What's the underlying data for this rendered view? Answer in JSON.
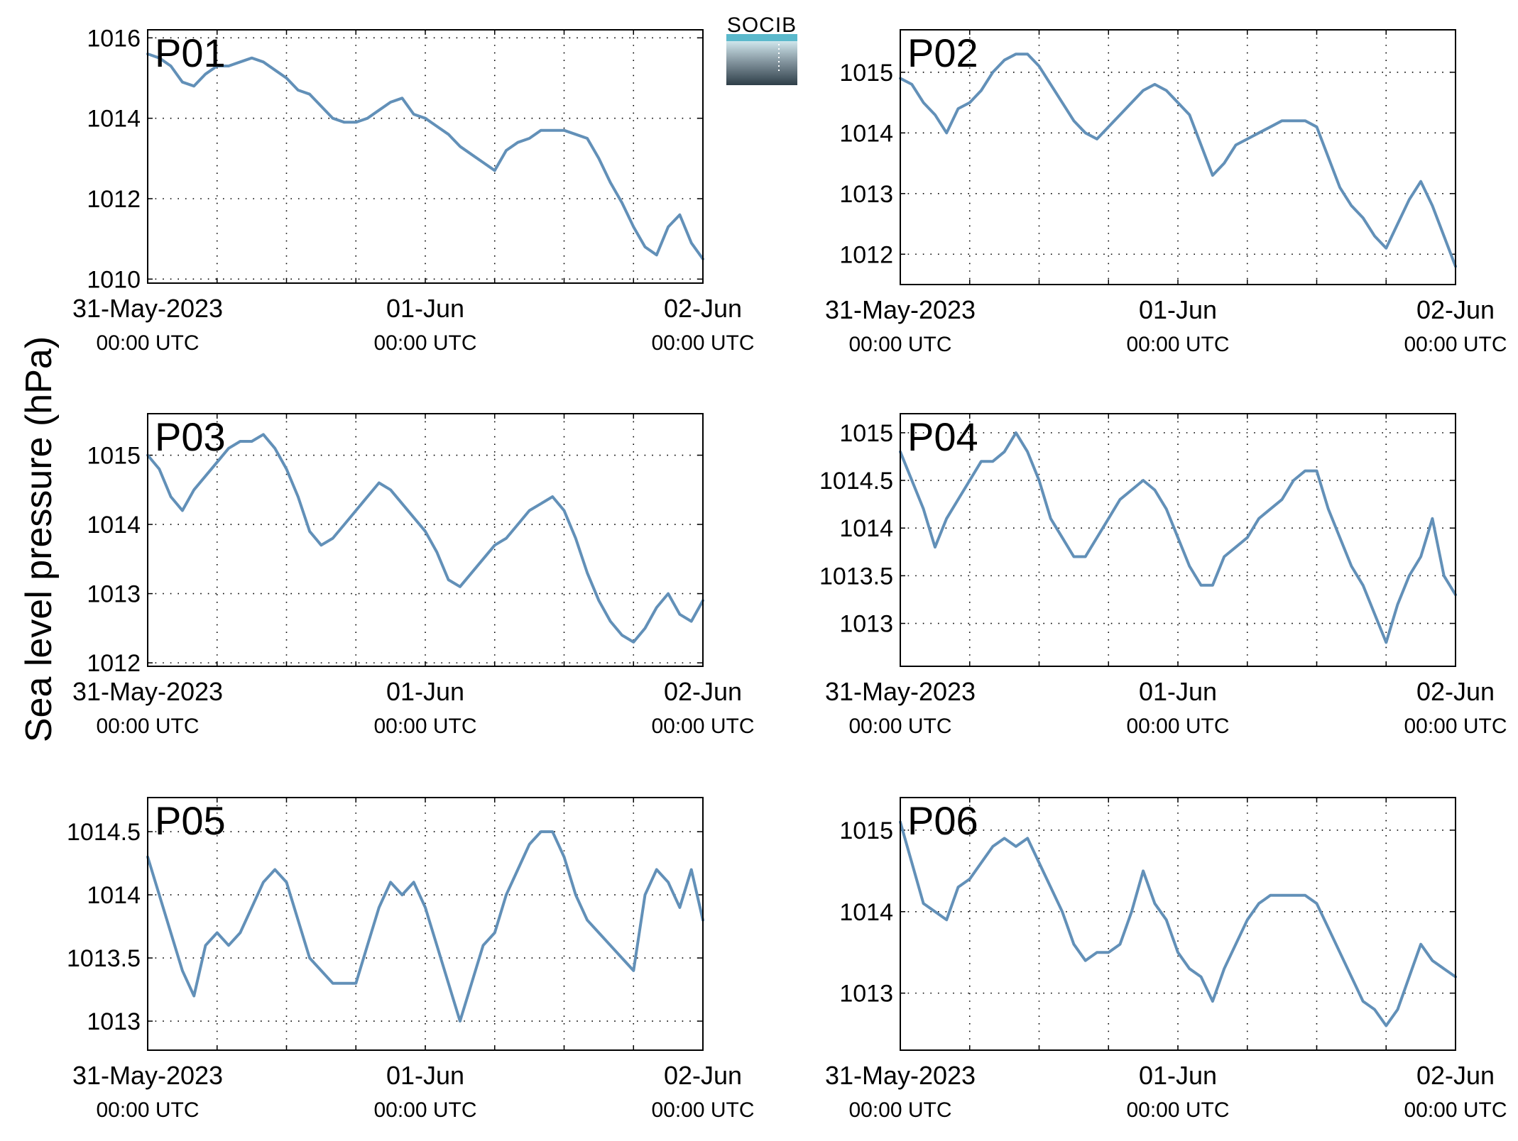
{
  "figure": {
    "ylabel": "Sea level pressure (hPa)",
    "logo_text": "SOCIB"
  },
  "colors": {
    "line": "#6290b8",
    "panel_label": "#ff0000",
    "axis": "#000000",
    "grid": "#000000",
    "logo_top": "#5bb9cc",
    "logo_bottom": "#2e3e48"
  },
  "chart_data": [
    {
      "type": "line",
      "panel_label": "P01",
      "series_color": "#6290b8",
      "xlim": [
        0,
        48
      ],
      "ylim": [
        1009.9,
        1016.2
      ],
      "yticks": [
        1010,
        1012,
        1014,
        1016
      ],
      "ytick_labels": [
        "1010",
        "1012",
        "1014",
        "1016"
      ],
      "xticks": [
        0,
        24,
        48
      ],
      "xtick_date_labels": [
        "31-May-2023",
        "01-Jun",
        "02-Jun"
      ],
      "xtick_time_labels": [
        "00:00 UTC",
        "00:00 UTC",
        "00:00 UTC"
      ],
      "grid": true,
      "x_unit": "hours since 31-May-2023 00:00 UTC",
      "x": [
        0,
        1,
        2,
        3,
        4,
        5,
        6,
        7,
        8,
        9,
        10,
        11,
        12,
        13,
        14,
        15,
        16,
        17,
        18,
        19,
        20,
        21,
        22,
        23,
        24,
        25,
        26,
        27,
        28,
        29,
        30,
        31,
        32,
        33,
        34,
        35,
        36,
        37,
        38,
        39,
        40,
        41,
        42,
        43,
        44,
        45,
        46,
        47,
        48
      ],
      "y": [
        1015.6,
        1015.5,
        1015.3,
        1014.9,
        1014.8,
        1015.1,
        1015.3,
        1015.3,
        1015.4,
        1015.5,
        1015.4,
        1015.2,
        1015.0,
        1014.7,
        1014.6,
        1014.3,
        1014.0,
        1013.9,
        1013.9,
        1014.0,
        1014.2,
        1014.4,
        1014.5,
        1014.1,
        1014.0,
        1013.8,
        1013.6,
        1013.3,
        1013.1,
        1012.9,
        1012.7,
        1013.2,
        1013.4,
        1013.5,
        1013.7,
        1013.7,
        1013.7,
        1013.6,
        1013.5,
        1013.0,
        1012.4,
        1011.9,
        1011.3,
        1010.8,
        1010.6,
        1011.3,
        1011.6,
        1010.9,
        1010.5
      ]
    },
    {
      "type": "line",
      "panel_label": "P02",
      "series_color": "#6290b8",
      "xlim": [
        0,
        48
      ],
      "ylim": [
        1011.5,
        1015.7
      ],
      "yticks": [
        1012,
        1013,
        1014,
        1015
      ],
      "ytick_labels": [
        "1012",
        "1013",
        "1014",
        "1015"
      ],
      "xticks": [
        0,
        24,
        48
      ],
      "xtick_date_labels": [
        "31-May-2023",
        "01-Jun",
        "02-Jun"
      ],
      "xtick_time_labels": [
        "00:00 UTC",
        "00:00 UTC",
        "00:00 UTC"
      ],
      "grid": true,
      "x_unit": "hours since 31-May-2023 00:00 UTC",
      "x": [
        0,
        1,
        2,
        3,
        4,
        5,
        6,
        7,
        8,
        9,
        10,
        11,
        12,
        13,
        14,
        15,
        16,
        17,
        18,
        19,
        20,
        21,
        22,
        23,
        24,
        25,
        26,
        27,
        28,
        29,
        30,
        31,
        32,
        33,
        34,
        35,
        36,
        37,
        38,
        39,
        40,
        41,
        42,
        43,
        44,
        45,
        46,
        47,
        48
      ],
      "y": [
        1014.9,
        1014.8,
        1014.5,
        1014.3,
        1014.0,
        1014.4,
        1014.5,
        1014.7,
        1015.0,
        1015.2,
        1015.3,
        1015.3,
        1015.1,
        1014.8,
        1014.5,
        1014.2,
        1014.0,
        1013.9,
        1014.1,
        1014.3,
        1014.5,
        1014.7,
        1014.8,
        1014.7,
        1014.5,
        1014.3,
        1013.8,
        1013.3,
        1013.5,
        1013.8,
        1013.9,
        1014.0,
        1014.1,
        1014.2,
        1014.2,
        1014.2,
        1014.1,
        1013.6,
        1013.1,
        1012.8,
        1012.6,
        1012.3,
        1012.1,
        1012.5,
        1012.9,
        1013.2,
        1012.8,
        1012.3,
        1011.8
      ]
    },
    {
      "type": "line",
      "panel_label": "P03",
      "series_color": "#6290b8",
      "xlim": [
        0,
        48
      ],
      "ylim": [
        1011.95,
        1015.6
      ],
      "yticks": [
        1012,
        1013,
        1014,
        1015
      ],
      "ytick_labels": [
        "1012",
        "1013",
        "1014",
        "1015"
      ],
      "xticks": [
        0,
        24,
        48
      ],
      "xtick_date_labels": [
        "31-May-2023",
        "01-Jun",
        "02-Jun"
      ],
      "xtick_time_labels": [
        "00:00 UTC",
        "00:00 UTC",
        "00:00 UTC"
      ],
      "grid": true,
      "x_unit": "hours since 31-May-2023 00:00 UTC",
      "x": [
        0,
        1,
        2,
        3,
        4,
        5,
        6,
        7,
        8,
        9,
        10,
        11,
        12,
        13,
        14,
        15,
        16,
        17,
        18,
        19,
        20,
        21,
        22,
        23,
        24,
        25,
        26,
        27,
        28,
        29,
        30,
        31,
        32,
        33,
        34,
        35,
        36,
        37,
        38,
        39,
        40,
        41,
        42,
        43,
        44,
        45,
        46,
        47,
        48
      ],
      "y": [
        1015.0,
        1014.8,
        1014.4,
        1014.2,
        1014.5,
        1014.7,
        1014.9,
        1015.1,
        1015.2,
        1015.2,
        1015.3,
        1015.1,
        1014.8,
        1014.4,
        1013.9,
        1013.7,
        1013.8,
        1014.0,
        1014.2,
        1014.4,
        1014.6,
        1014.5,
        1014.3,
        1014.1,
        1013.9,
        1013.6,
        1013.2,
        1013.1,
        1013.3,
        1013.5,
        1013.7,
        1013.8,
        1014.0,
        1014.2,
        1014.3,
        1014.4,
        1014.2,
        1013.8,
        1013.3,
        1012.9,
        1012.6,
        1012.4,
        1012.3,
        1012.5,
        1012.8,
        1013.0,
        1012.7,
        1012.6,
        1012.9
      ]
    },
    {
      "type": "line",
      "panel_label": "P04",
      "series_color": "#6290b8",
      "xlim": [
        0,
        48
      ],
      "ylim": [
        1012.55,
        1015.2
      ],
      "yticks": [
        1013,
        1013.5,
        1014,
        1014.5,
        1015
      ],
      "ytick_labels": [
        "1013",
        "1013.5",
        "1014",
        "1014.5",
        "1015"
      ],
      "xticks": [
        0,
        24,
        48
      ],
      "xtick_date_labels": [
        "31-May-2023",
        "01-Jun",
        "02-Jun"
      ],
      "xtick_time_labels": [
        "00:00 UTC",
        "00:00 UTC",
        "00:00 UTC"
      ],
      "grid": true,
      "x_unit": "hours since 31-May-2023 00:00 UTC",
      "x": [
        0,
        1,
        2,
        3,
        4,
        5,
        6,
        7,
        8,
        9,
        10,
        11,
        12,
        13,
        14,
        15,
        16,
        17,
        18,
        19,
        20,
        21,
        22,
        23,
        24,
        25,
        26,
        27,
        28,
        29,
        30,
        31,
        32,
        33,
        34,
        35,
        36,
        37,
        38,
        39,
        40,
        41,
        42,
        43,
        44,
        45,
        46,
        47,
        48
      ],
      "y": [
        1014.8,
        1014.5,
        1014.2,
        1013.8,
        1014.1,
        1014.3,
        1014.5,
        1014.7,
        1014.7,
        1014.8,
        1015.0,
        1014.8,
        1014.5,
        1014.1,
        1013.9,
        1013.7,
        1013.7,
        1013.9,
        1014.1,
        1014.3,
        1014.4,
        1014.5,
        1014.4,
        1014.2,
        1013.9,
        1013.6,
        1013.4,
        1013.4,
        1013.7,
        1013.8,
        1013.9,
        1014.1,
        1014.2,
        1014.3,
        1014.5,
        1014.6,
        1014.6,
        1014.2,
        1013.9,
        1013.6,
        1013.4,
        1013.1,
        1012.8,
        1013.2,
        1013.5,
        1013.7,
        1014.1,
        1013.5,
        1013.3
      ]
    },
    {
      "type": "line",
      "panel_label": "P05",
      "series_color": "#6290b8",
      "xlim": [
        0,
        48
      ],
      "ylim": [
        1012.77,
        1014.77
      ],
      "yticks": [
        1013,
        1013.5,
        1014,
        1014.5
      ],
      "ytick_labels": [
        "1013",
        "1013.5",
        "1014",
        "1014.5"
      ],
      "xticks": [
        0,
        24,
        48
      ],
      "xtick_date_labels": [
        "31-May-2023",
        "01-Jun",
        "02-Jun"
      ],
      "xtick_time_labels": [
        "00:00 UTC",
        "00:00 UTC",
        "00:00 UTC"
      ],
      "grid": true,
      "x_unit": "hours since 31-May-2023 00:00 UTC",
      "x": [
        0,
        1,
        2,
        3,
        4,
        5,
        6,
        7,
        8,
        9,
        10,
        11,
        12,
        13,
        14,
        15,
        16,
        17,
        18,
        19,
        20,
        21,
        22,
        23,
        24,
        25,
        26,
        27,
        28,
        29,
        30,
        31,
        32,
        33,
        34,
        35,
        36,
        37,
        38,
        39,
        40,
        41,
        42,
        43,
        44,
        45,
        46,
        47,
        48
      ],
      "y": [
        1014.3,
        1014.0,
        1013.7,
        1013.4,
        1013.2,
        1013.6,
        1013.7,
        1013.6,
        1013.7,
        1013.9,
        1014.1,
        1014.2,
        1014.1,
        1013.8,
        1013.5,
        1013.4,
        1013.3,
        1013.3,
        1013.3,
        1013.6,
        1013.9,
        1014.1,
        1014.0,
        1014.1,
        1013.9,
        1013.6,
        1013.3,
        1013.0,
        1013.3,
        1013.6,
        1013.7,
        1014.0,
        1014.2,
        1014.4,
        1014.5,
        1014.5,
        1014.3,
        1014.0,
        1013.8,
        1013.7,
        1013.6,
        1013.5,
        1013.4,
        1014.0,
        1014.2,
        1014.1,
        1013.9,
        1014.2,
        1013.8
      ]
    },
    {
      "type": "line",
      "panel_label": "P06",
      "series_color": "#6290b8",
      "xlim": [
        0,
        48
      ],
      "ylim": [
        1012.3,
        1015.4
      ],
      "yticks": [
        1013,
        1014,
        1015
      ],
      "ytick_labels": [
        "1013",
        "1014",
        "1015"
      ],
      "xticks": [
        0,
        24,
        48
      ],
      "xtick_date_labels": [
        "31-May-2023",
        "01-Jun",
        "02-Jun"
      ],
      "xtick_time_labels": [
        "00:00 UTC",
        "00:00 UTC",
        "00:00 UTC"
      ],
      "grid": true,
      "x_unit": "hours since 31-May-2023 00:00 UTC",
      "x": [
        0,
        1,
        2,
        3,
        4,
        5,
        6,
        7,
        8,
        9,
        10,
        11,
        12,
        13,
        14,
        15,
        16,
        17,
        18,
        19,
        20,
        21,
        22,
        23,
        24,
        25,
        26,
        27,
        28,
        29,
        30,
        31,
        32,
        33,
        34,
        35,
        36,
        37,
        38,
        39,
        40,
        41,
        42,
        43,
        44,
        45,
        46,
        47,
        48
      ],
      "y": [
        1015.1,
        1014.6,
        1014.1,
        1014.0,
        1013.9,
        1014.3,
        1014.4,
        1014.6,
        1014.8,
        1014.9,
        1014.8,
        1014.9,
        1014.6,
        1014.3,
        1014.0,
        1013.6,
        1013.4,
        1013.5,
        1013.5,
        1013.6,
        1014.0,
        1014.5,
        1014.1,
        1013.9,
        1013.5,
        1013.3,
        1013.2,
        1012.9,
        1013.3,
        1013.6,
        1013.9,
        1014.1,
        1014.2,
        1014.2,
        1014.2,
        1014.2,
        1014.1,
        1013.8,
        1013.5,
        1013.2,
        1012.9,
        1012.8,
        1012.6,
        1012.8,
        1013.2,
        1013.6,
        1013.4,
        1013.3,
        1013.2
      ]
    }
  ]
}
